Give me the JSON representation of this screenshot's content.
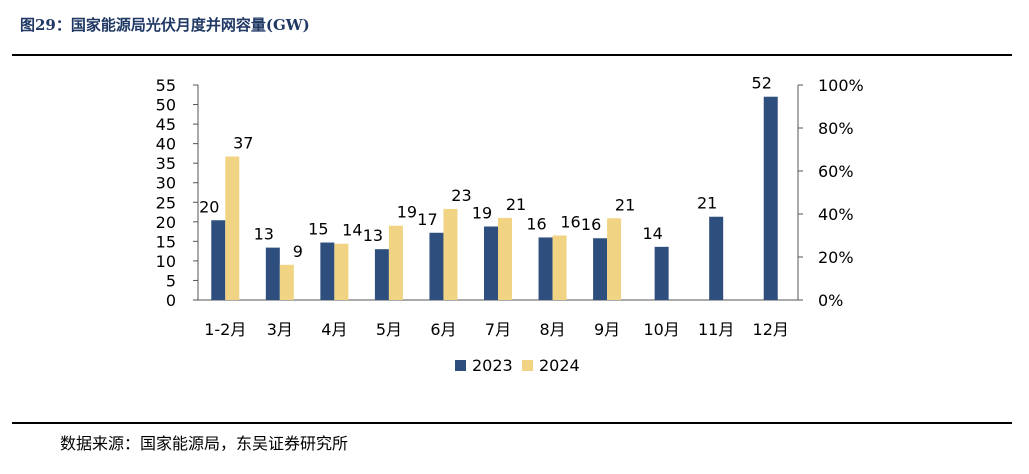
{
  "figure": {
    "title": "图29：国家能源局光伏月度并网容量(GW)",
    "source": "数据来源：国家能源局，东吴证券研究所"
  },
  "chart_data": {
    "type": "bar",
    "categories": [
      "1-2月",
      "3月",
      "4月",
      "5月",
      "6月",
      "7月",
      "8月",
      "9月",
      "10月",
      "11月",
      "12月"
    ],
    "series": [
      {
        "name": "2023",
        "color": "#2e4e7e",
        "values": [
          20.4,
          13.4,
          14.7,
          13.0,
          17.2,
          18.8,
          16.0,
          15.8,
          13.6,
          21.3,
          52.0
        ],
        "labels": [
          "20",
          "13",
          "15",
          "13",
          "17",
          "19",
          "16",
          "16",
          "14",
          "21",
          "52"
        ]
      },
      {
        "name": "2024",
        "color": "#f0d383",
        "values": [
          36.7,
          9.0,
          14.4,
          19.0,
          23.3,
          21.0,
          16.5,
          20.9,
          null,
          null,
          null
        ],
        "labels": [
          "37",
          "9",
          "14",
          "19",
          "23",
          "21",
          "16",
          "21",
          "",
          "",
          ""
        ]
      }
    ],
    "y_left": {
      "min": 0,
      "max": 55,
      "ticks": [
        "0",
        "5",
        "10",
        "15",
        "20",
        "25",
        "30",
        "35",
        "40",
        "45",
        "50",
        "55"
      ]
    },
    "y_right": {
      "min": 0,
      "max": 100,
      "ticks": [
        "0%",
        "20%",
        "40%",
        "60%",
        "80%",
        "100%"
      ]
    },
    "grid": false,
    "legend_position": "bottom"
  }
}
